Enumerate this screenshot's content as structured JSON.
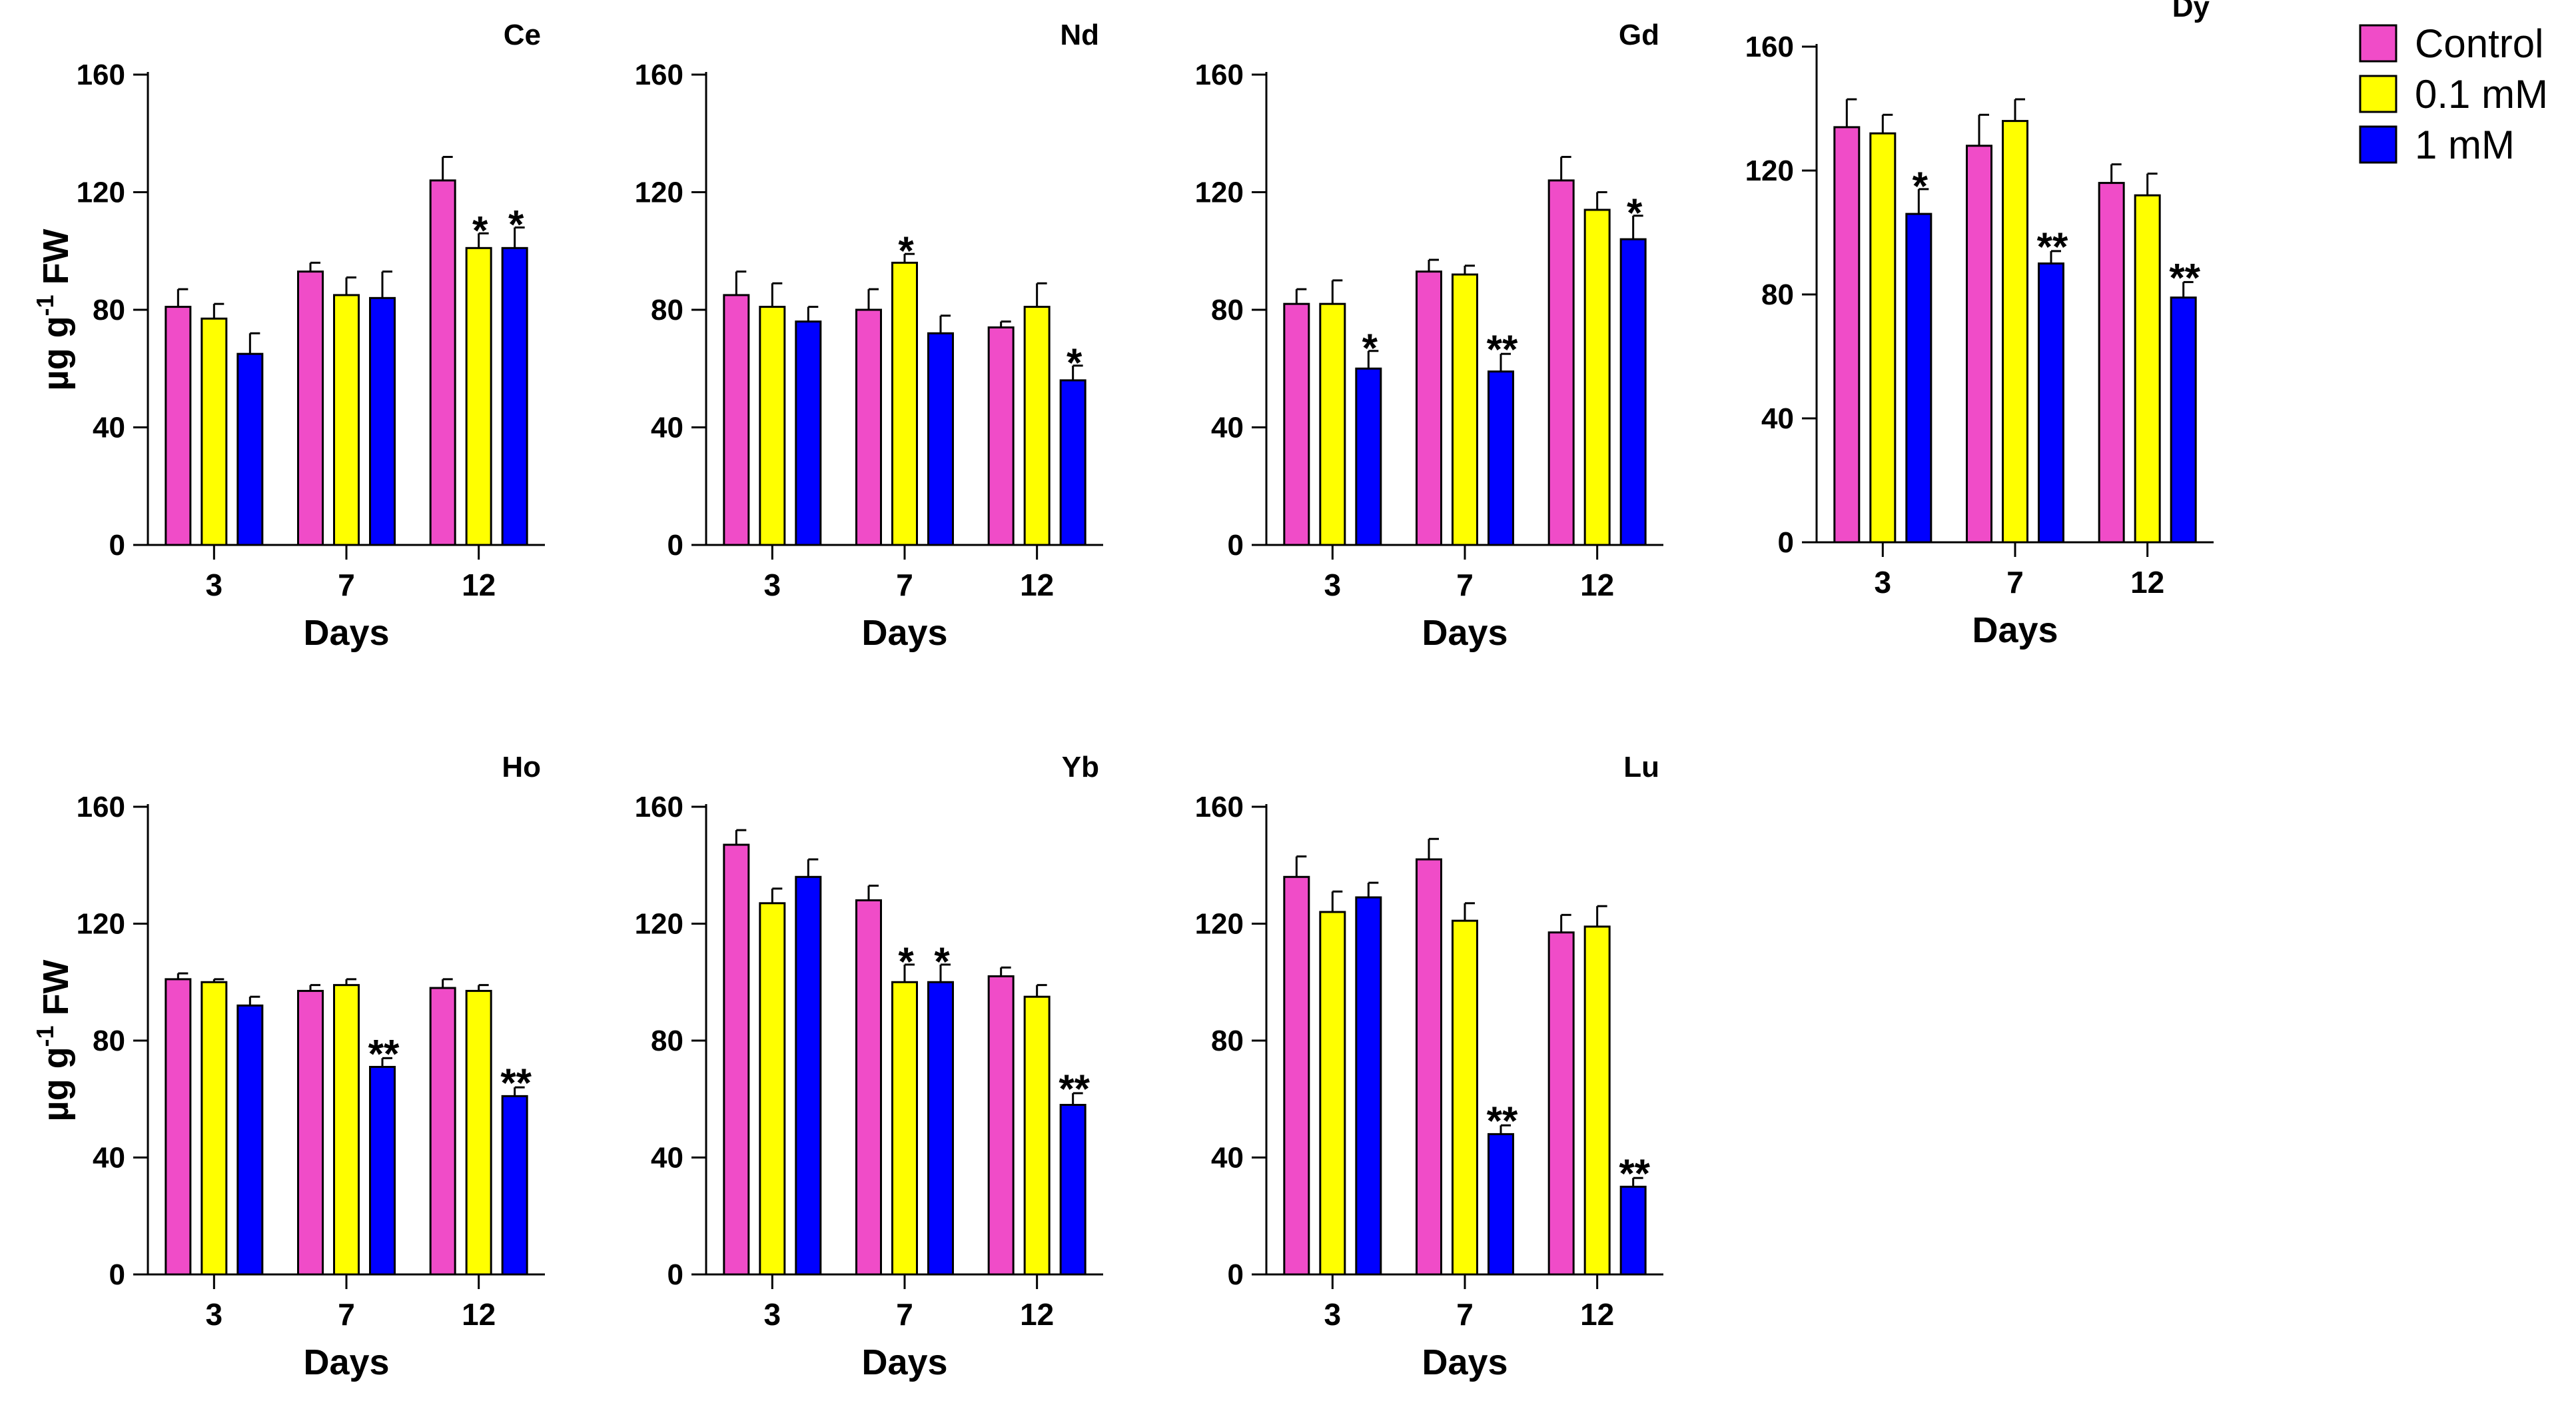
{
  "legend": {
    "entries": [
      {
        "label": "Control",
        "color": "#F04CC8"
      },
      {
        "label": "0.1 mM",
        "color": "#FFFF00"
      },
      {
        "label": "1 mM",
        "color": "#0000FF"
      }
    ]
  },
  "ylabel_parts": [
    "µg g",
    "-1",
    " FW"
  ],
  "chart_data": [
    {
      "type": "bar",
      "title": "Ce",
      "xlabel": "Days",
      "ylabel": "µg g-1 FW",
      "categories": [
        "3",
        "7",
        "12"
      ],
      "ylim": [
        0,
        160
      ],
      "yticks": [
        "0",
        "40",
        "80",
        "120",
        "160"
      ],
      "series": [
        {
          "name": "Control",
          "values": [
            81,
            93,
            124
          ],
          "errors": [
            6,
            3,
            8
          ],
          "sig": [
            "",
            "",
            ""
          ]
        },
        {
          "name": "0.1 mM",
          "values": [
            77,
            85,
            101
          ],
          "errors": [
            5,
            6,
            5
          ],
          "sig": [
            "",
            "",
            "*"
          ]
        },
        {
          "name": "1 mM",
          "values": [
            65,
            84,
            101
          ],
          "errors": [
            7,
            9,
            7
          ],
          "sig": [
            "",
            "",
            "*"
          ]
        }
      ]
    },
    {
      "type": "bar",
      "title": "Nd",
      "xlabel": "Days",
      "ylabel": "",
      "categories": [
        "3",
        "7",
        "12"
      ],
      "ylim": [
        0,
        160
      ],
      "yticks": [
        "0",
        "40",
        "80",
        "120",
        "160"
      ],
      "series": [
        {
          "name": "Control",
          "values": [
            85,
            80,
            74
          ],
          "errors": [
            8,
            7,
            2
          ],
          "sig": [
            "",
            "",
            ""
          ]
        },
        {
          "name": "0.1 mM",
          "values": [
            81,
            96,
            81
          ],
          "errors": [
            8,
            3,
            8
          ],
          "sig": [
            "",
            "*",
            ""
          ]
        },
        {
          "name": "1 mM",
          "values": [
            76,
            72,
            56
          ],
          "errors": [
            5,
            6,
            5
          ],
          "sig": [
            "",
            "",
            "*"
          ]
        }
      ]
    },
    {
      "type": "bar",
      "title": "Gd",
      "xlabel": "Days",
      "ylabel": "",
      "categories": [
        "3",
        "7",
        "12"
      ],
      "ylim": [
        0,
        160
      ],
      "yticks": [
        "0",
        "40",
        "80",
        "120",
        "160"
      ],
      "series": [
        {
          "name": "Control",
          "values": [
            82,
            93,
            124
          ],
          "errors": [
            5,
            4,
            8
          ],
          "sig": [
            "",
            "",
            ""
          ]
        },
        {
          "name": "0.1 mM",
          "values": [
            82,
            92,
            114
          ],
          "errors": [
            8,
            3,
            6
          ],
          "sig": [
            "",
            "",
            ""
          ]
        },
        {
          "name": "1 mM",
          "values": [
            60,
            59,
            104
          ],
          "errors": [
            6,
            6,
            8
          ],
          "sig": [
            "*",
            "**",
            "*"
          ]
        }
      ]
    },
    {
      "type": "bar",
      "title": "Dy",
      "xlabel": "Days",
      "ylabel": "",
      "categories": [
        "3",
        "7",
        "12"
      ],
      "ylim": [
        0,
        160
      ],
      "yticks": [
        "0",
        "40",
        "80",
        "120",
        "160"
      ],
      "series": [
        {
          "name": "Control",
          "values": [
            134,
            128,
            116
          ],
          "errors": [
            9,
            10,
            6
          ],
          "sig": [
            "",
            "",
            ""
          ]
        },
        {
          "name": "0.1 mM",
          "values": [
            132,
            136,
            112
          ],
          "errors": [
            6,
            7,
            7
          ],
          "sig": [
            "",
            "",
            ""
          ]
        },
        {
          "name": "1 mM",
          "values": [
            106,
            90,
            79
          ],
          "errors": [
            8,
            4,
            5
          ],
          "sig": [
            "*",
            "**",
            "**"
          ]
        }
      ]
    },
    {
      "type": "bar",
      "title": "Ho",
      "xlabel": "Days",
      "ylabel": "µg g-1 FW",
      "categories": [
        "3",
        "7",
        "12"
      ],
      "ylim": [
        0,
        160
      ],
      "yticks": [
        "0",
        "40",
        "80",
        "120",
        "160"
      ],
      "series": [
        {
          "name": "Control",
          "values": [
            101,
            97,
            98
          ],
          "errors": [
            2,
            2,
            3
          ],
          "sig": [
            "",
            "",
            ""
          ]
        },
        {
          "name": "0.1 mM",
          "values": [
            100,
            99,
            97
          ],
          "errors": [
            1,
            2,
            2
          ],
          "sig": [
            "",
            "",
            ""
          ]
        },
        {
          "name": "1 mM",
          "values": [
            92,
            71,
            61
          ],
          "errors": [
            3,
            3,
            3
          ],
          "sig": [
            "",
            "**",
            "**"
          ]
        }
      ]
    },
    {
      "type": "bar",
      "title": "Yb",
      "xlabel": "Days",
      "ylabel": "",
      "categories": [
        "3",
        "7",
        "12"
      ],
      "ylim": [
        0,
        160
      ],
      "yticks": [
        "0",
        "40",
        "80",
        "120",
        "160"
      ],
      "series": [
        {
          "name": "Control",
          "values": [
            147,
            128,
            102
          ],
          "errors": [
            5,
            5,
            3
          ],
          "sig": [
            "",
            "",
            ""
          ]
        },
        {
          "name": "0.1 mM",
          "values": [
            127,
            100,
            95
          ],
          "errors": [
            5,
            6,
            4
          ],
          "sig": [
            "",
            "*",
            ""
          ]
        },
        {
          "name": "1 mM",
          "values": [
            136,
            100,
            58
          ],
          "errors": [
            6,
            6,
            4
          ],
          "sig": [
            "",
            "*",
            "**"
          ]
        }
      ]
    },
    {
      "type": "bar",
      "title": "Lu",
      "xlabel": "Days",
      "ylabel": "",
      "categories": [
        "3",
        "7",
        "12"
      ],
      "ylim": [
        0,
        160
      ],
      "yticks": [
        "0",
        "40",
        "80",
        "120",
        "160"
      ],
      "series": [
        {
          "name": "Control",
          "values": [
            136,
            142,
            117
          ],
          "errors": [
            7,
            7,
            6
          ],
          "sig": [
            "",
            "",
            ""
          ]
        },
        {
          "name": "0.1 mM",
          "values": [
            124,
            121,
            119
          ],
          "errors": [
            7,
            6,
            7
          ],
          "sig": [
            "",
            "",
            ""
          ]
        },
        {
          "name": "1 mM",
          "values": [
            129,
            48,
            30
          ],
          "errors": [
            5,
            3,
            3
          ],
          "sig": [
            "",
            "**",
            "**"
          ]
        }
      ]
    }
  ]
}
